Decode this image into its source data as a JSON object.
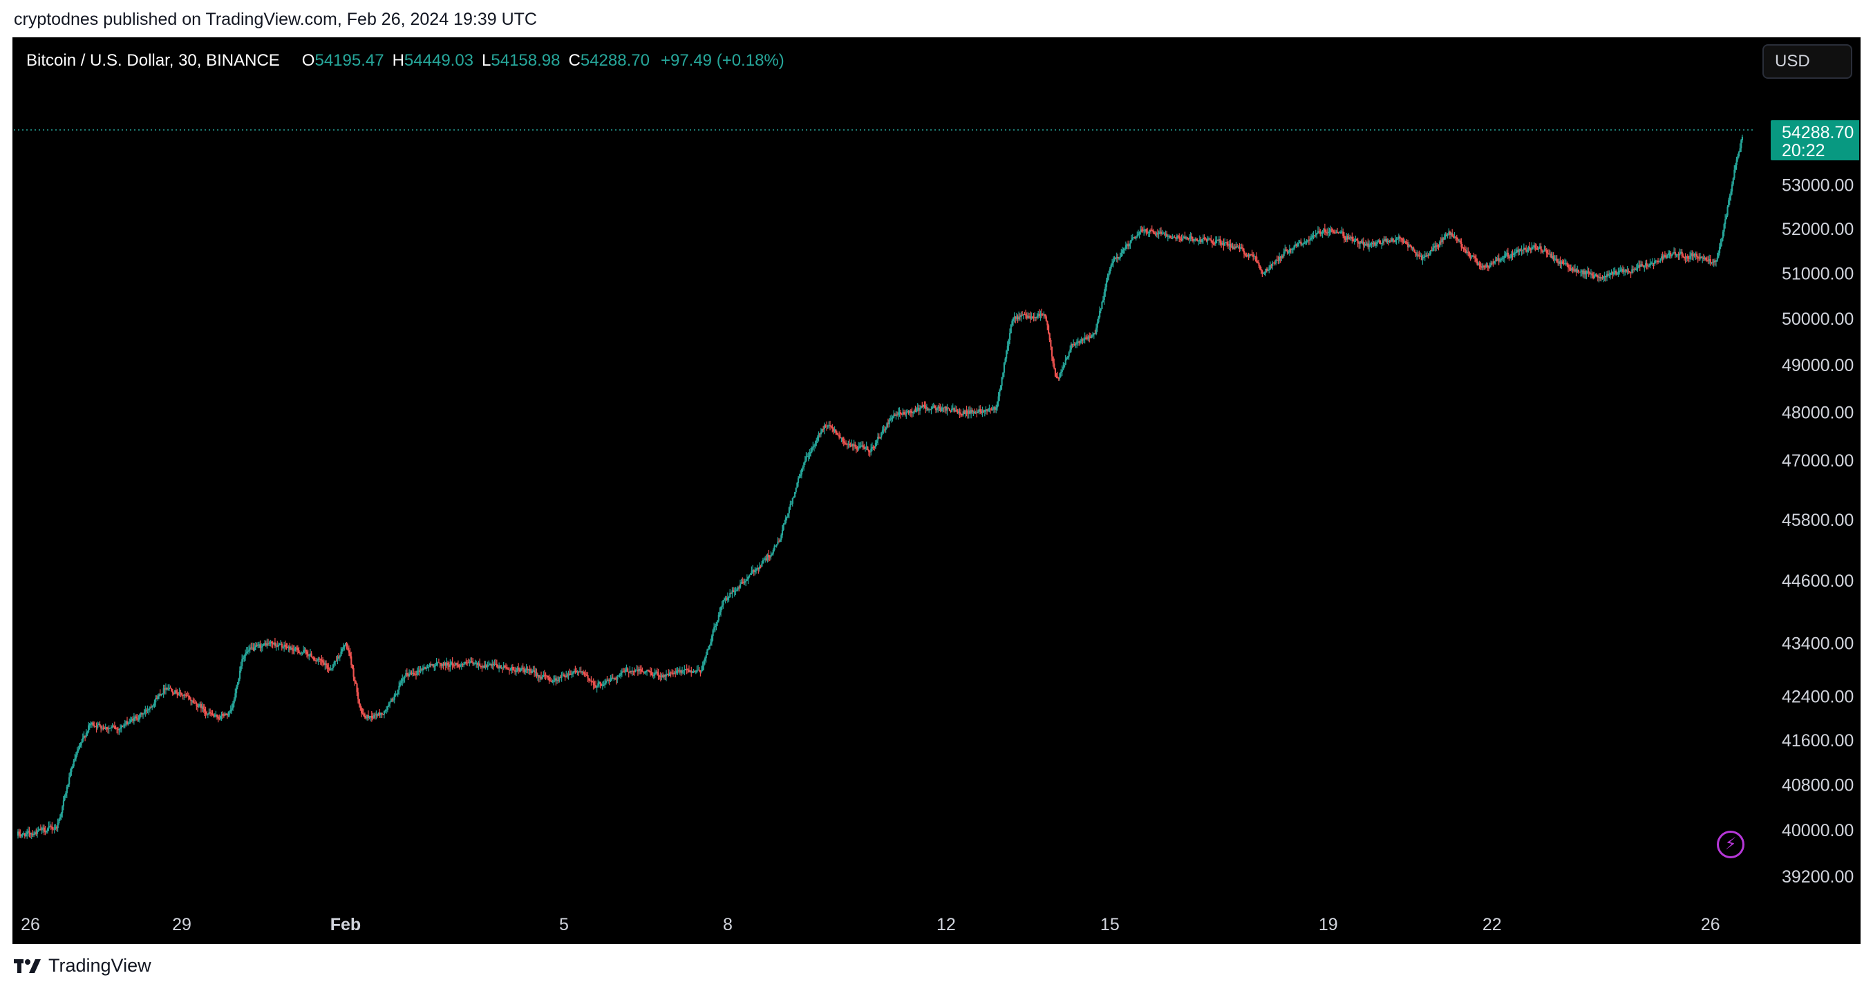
{
  "header": {
    "published_by": "cryptodnes published on TradingView.com, Feb 26, 2024 19:39 UTC"
  },
  "legend": {
    "symbol": "Bitcoin / U.S. Dollar, 30, BINANCE",
    "open_label": "O",
    "open": "54195.47",
    "high_label": "H",
    "high": "54449.03",
    "low_label": "L",
    "low": "54158.98",
    "close_label": "C",
    "close": "54288.70",
    "change": "+97.49 (+0.18%)"
  },
  "currency_button": {
    "label": "USD"
  },
  "last_price_label": {
    "price": "54288.70",
    "countdown": "20:22"
  },
  "footer": {
    "brand": "TradingView"
  },
  "icons": {
    "quick_trade": "lightning-bolt-icon",
    "logo": "tradingview-logo-icon"
  },
  "colors": {
    "background": "#000000",
    "up": "#26a69a",
    "down": "#ef5350",
    "axis_text": "#d1d4dc",
    "price_label_bg": "#089981",
    "bolt": "#b637d8"
  },
  "chart_data": {
    "type": "candlestick",
    "interval": "30",
    "scale": "log",
    "grid": false,
    "xlabel": "",
    "ylabel": "",
    "ylim": [
      38900,
      54600
    ],
    "x_day_range": [
      "Jan 26",
      "Feb 26"
    ],
    "x_ticks": [
      {
        "day": 0,
        "label": "26"
      },
      {
        "day": 3,
        "label": "29"
      },
      {
        "day": 6,
        "label": "Feb",
        "bold": true
      },
      {
        "day": 10,
        "label": "5"
      },
      {
        "day": 13,
        "label": "8"
      },
      {
        "day": 17,
        "label": "12"
      },
      {
        "day": 20,
        "label": "15"
      },
      {
        "day": 24,
        "label": "19"
      },
      {
        "day": 27,
        "label": "22"
      },
      {
        "day": 31,
        "label": "26"
      }
    ],
    "y_ticks": [
      39200,
      40000,
      40800,
      41600,
      42400,
      43400,
      44600,
      45800,
      47000,
      48000,
      49000,
      50000,
      51000,
      52000,
      53000
    ],
    "last_price": 54288.7,
    "price_path_approx": [
      {
        "day": 0.0,
        "price": 39900
      },
      {
        "day": 0.7,
        "price": 40050
      },
      {
        "day": 1.0,
        "price": 41200
      },
      {
        "day": 1.3,
        "price": 41900
      },
      {
        "day": 1.8,
        "price": 41800
      },
      {
        "day": 2.3,
        "price": 42100
      },
      {
        "day": 2.7,
        "price": 42600
      },
      {
        "day": 3.2,
        "price": 42300
      },
      {
        "day": 3.6,
        "price": 42000
      },
      {
        "day": 3.9,
        "price": 42100
      },
      {
        "day": 4.1,
        "price": 43200
      },
      {
        "day": 4.6,
        "price": 43400
      },
      {
        "day": 5.3,
        "price": 43200
      },
      {
        "day": 5.7,
        "price": 42900
      },
      {
        "day": 6.0,
        "price": 43400
      },
      {
        "day": 6.3,
        "price": 42000
      },
      {
        "day": 6.7,
        "price": 42100
      },
      {
        "day": 7.1,
        "price": 42800
      },
      {
        "day": 7.6,
        "price": 43000
      },
      {
        "day": 8.3,
        "price": 43000
      },
      {
        "day": 9.2,
        "price": 42900
      },
      {
        "day": 9.8,
        "price": 42700
      },
      {
        "day": 10.2,
        "price": 42900
      },
      {
        "day": 10.6,
        "price": 42600
      },
      {
        "day": 11.2,
        "price": 42900
      },
      {
        "day": 11.8,
        "price": 42800
      },
      {
        "day": 12.5,
        "price": 42900
      },
      {
        "day": 12.9,
        "price": 44200
      },
      {
        "day": 13.4,
        "price": 44700
      },
      {
        "day": 13.9,
        "price": 45300
      },
      {
        "day": 14.4,
        "price": 47000
      },
      {
        "day": 14.8,
        "price": 47800
      },
      {
        "day": 15.2,
        "price": 47300
      },
      {
        "day": 15.6,
        "price": 47200
      },
      {
        "day": 16.0,
        "price": 47900
      },
      {
        "day": 16.6,
        "price": 48100
      },
      {
        "day": 17.4,
        "price": 48000
      },
      {
        "day": 17.9,
        "price": 48100
      },
      {
        "day": 18.2,
        "price": 50000
      },
      {
        "day": 18.8,
        "price": 50100
      },
      {
        "day": 19.0,
        "price": 48600
      },
      {
        "day": 19.3,
        "price": 49500
      },
      {
        "day": 19.7,
        "price": 49600
      },
      {
        "day": 20.0,
        "price": 51200
      },
      {
        "day": 20.6,
        "price": 52000
      },
      {
        "day": 21.3,
        "price": 51800
      },
      {
        "day": 22.0,
        "price": 51700
      },
      {
        "day": 22.6,
        "price": 51400
      },
      {
        "day": 22.8,
        "price": 51000
      },
      {
        "day": 23.2,
        "price": 51500
      },
      {
        "day": 24.0,
        "price": 52000
      },
      {
        "day": 24.7,
        "price": 51600
      },
      {
        "day": 25.3,
        "price": 51800
      },
      {
        "day": 25.7,
        "price": 51300
      },
      {
        "day": 26.2,
        "price": 51900
      },
      {
        "day": 26.8,
        "price": 51100
      },
      {
        "day": 27.3,
        "price": 51400
      },
      {
        "day": 27.8,
        "price": 51600
      },
      {
        "day": 28.4,
        "price": 51100
      },
      {
        "day": 29.0,
        "price": 50900
      },
      {
        "day": 29.6,
        "price": 51100
      },
      {
        "day": 30.2,
        "price": 51400
      },
      {
        "day": 30.8,
        "price": 51400
      },
      {
        "day": 31.1,
        "price": 51200
      },
      {
        "day": 31.3,
        "price": 52500
      },
      {
        "day": 31.45,
        "price": 53500
      },
      {
        "day": 31.6,
        "price": 54288.7
      }
    ]
  }
}
